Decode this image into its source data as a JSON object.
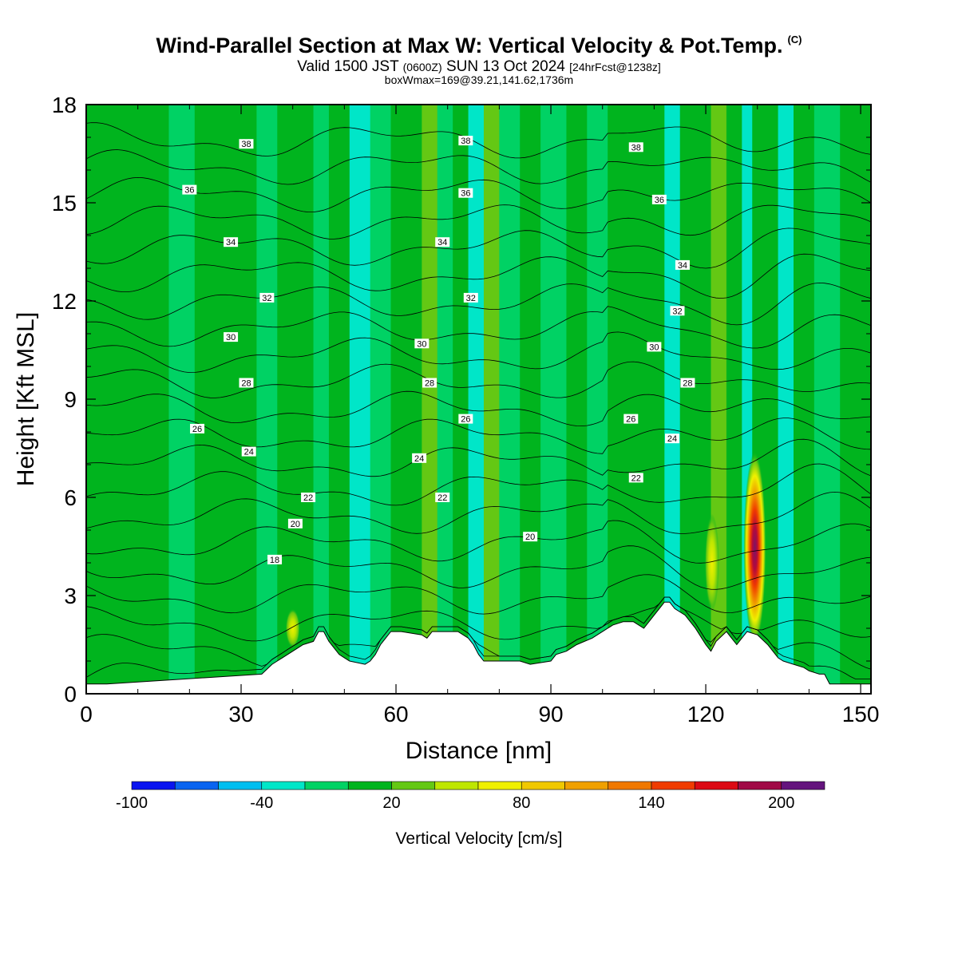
{
  "header": {
    "title": "Wind-Parallel Section at Max W: Vertical Velocity & Pot.Temp.",
    "copyright": "(C)",
    "valid_prefix": "Valid 1500 JST",
    "utc": "(0600Z)",
    "valid_suffix": "SUN 13 Oct 2024",
    "forecast": "[24hrFcst@1238z]",
    "box_info": "boxWmax=169@39.21,141.62,1736m"
  },
  "colorbar": {
    "label": "Vertical Velocity [cm/s]",
    "tick_labels": [
      "-100",
      "-40",
      "20",
      "80",
      "140",
      "200"
    ],
    "colors": [
      "#0a14f0",
      "#0a64f0",
      "#00bef0",
      "#00e6c8",
      "#00d264",
      "#00b41e",
      "#64c814",
      "#bee600",
      "#f0f000",
      "#f0c800",
      "#f0a000",
      "#f07800",
      "#f03c00",
      "#dc0a14",
      "#a00a46",
      "#64147d"
    ]
  },
  "chart_data": {
    "type": "heatmap",
    "title": "Wind-Parallel Section at Max W: Vertical Velocity & Pot.Temp.",
    "xlabel": "Distance [nm]",
    "ylabel": "Height [Kft MSL]",
    "xlim": [
      0,
      152
    ],
    "ylim": [
      0,
      18
    ],
    "xticks": [
      0,
      30,
      60,
      90,
      120,
      150
    ],
    "yticks": [
      0,
      3,
      6,
      9,
      12,
      15,
      18
    ],
    "grid": false,
    "fill_variable": "Vertical Velocity [cm/s]",
    "fill_bands": [
      {
        "x": [
          0,
          4
        ],
        "w": 10
      },
      {
        "x": [
          4,
          11
        ],
        "w": 20
      },
      {
        "x": [
          11,
          16
        ],
        "w": 12
      },
      {
        "x": [
          16,
          21
        ],
        "w": 8
      },
      {
        "x": [
          21,
          26
        ],
        "w": 14
      },
      {
        "x": [
          26,
          29
        ],
        "w": 22
      },
      {
        "x": [
          29,
          33
        ],
        "w": 18
      },
      {
        "x": [
          33,
          37
        ],
        "w": 6
      },
      {
        "x": [
          37,
          40
        ],
        "w": 24
      },
      {
        "x": [
          40,
          44
        ],
        "w": 10
      },
      {
        "x": [
          44,
          47
        ],
        "w": 0
      },
      {
        "x": [
          47,
          51
        ],
        "w": 16
      },
      {
        "x": [
          51,
          55
        ],
        "w": -20
      },
      {
        "x": [
          55,
          59
        ],
        "w": 8
      },
      {
        "x": [
          59,
          62
        ],
        "w": 22
      },
      {
        "x": [
          62,
          65
        ],
        "w": 14
      },
      {
        "x": [
          65,
          68
        ],
        "w": 36
      },
      {
        "x": [
          68,
          71
        ],
        "w": 6
      },
      {
        "x": [
          71,
          74
        ],
        "w": 20
      },
      {
        "x": [
          74,
          77
        ],
        "w": -12
      },
      {
        "x": [
          77,
          80
        ],
        "w": 30
      },
      {
        "x": [
          80,
          84
        ],
        "w": 4
      },
      {
        "x": [
          84,
          88
        ],
        "w": 22
      },
      {
        "x": [
          88,
          93
        ],
        "w": 0
      },
      {
        "x": [
          93,
          97
        ],
        "w": 18
      },
      {
        "x": [
          97,
          101
        ],
        "w": 6
      },
      {
        "x": [
          101,
          105
        ],
        "w": 26
      },
      {
        "x": [
          105,
          109
        ],
        "w": 10
      },
      {
        "x": [
          109,
          112
        ],
        "w": 16
      },
      {
        "x": [
          112,
          115
        ],
        "w": -18
      },
      {
        "x": [
          115,
          118
        ],
        "w": 12
      },
      {
        "x": [
          118,
          121
        ],
        "w": 24
      },
      {
        "x": [
          121,
          124
        ],
        "w": 40
      },
      {
        "x": [
          124,
          127
        ],
        "w": 14
      },
      {
        "x": [
          127,
          129
        ],
        "w": -30
      },
      {
        "x": [
          129,
          131
        ],
        "w": 28
      },
      {
        "x": [
          131,
          134
        ],
        "w": 12
      },
      {
        "x": [
          134,
          137
        ],
        "w": -16
      },
      {
        "x": [
          137,
          141
        ],
        "w": 20
      },
      {
        "x": [
          141,
          146
        ],
        "w": 8
      },
      {
        "x": [
          146,
          152
        ],
        "w": 18
      }
    ],
    "updraft_cores": [
      {
        "x": 129.5,
        "z_range": [
          1.5,
          7.4
        ],
        "w_max": 169
      },
      {
        "x": 121.2,
        "z_range": [
          2.5,
          5.5
        ],
        "w_max": 60
      },
      {
        "x": 40,
        "z_range": [
          1.4,
          2.6
        ],
        "w_max": 40
      }
    ],
    "theta_contours": {
      "variable": "Pot.Temp.",
      "levels": [
        18,
        19,
        20,
        21,
        22,
        23,
        24,
        25,
        26,
        27,
        28,
        29,
        30,
        31,
        32,
        33,
        34,
        35,
        36,
        37,
        38
      ],
      "labels": [
        {
          "text": "18",
          "x": 36.5,
          "z": 4.1
        },
        {
          "text": "20",
          "x": 40.5,
          "z": 5.2
        },
        {
          "text": "22",
          "x": 43,
          "z": 6.0
        },
        {
          "text": "24",
          "x": 31.5,
          "z": 7.4
        },
        {
          "text": "26",
          "x": 21.5,
          "z": 8.1
        },
        {
          "text": "28",
          "x": 31,
          "z": 9.5
        },
        {
          "text": "30",
          "x": 28,
          "z": 10.9
        },
        {
          "text": "32",
          "x": 35,
          "z": 12.1
        },
        {
          "text": "34",
          "x": 28,
          "z": 13.8
        },
        {
          "text": "36",
          "x": 20,
          "z": 15.4
        },
        {
          "text": "38",
          "x": 31,
          "z": 16.8
        },
        {
          "text": "24",
          "x": 64.5,
          "z": 7.2
        },
        {
          "text": "22",
          "x": 69,
          "z": 6.0
        },
        {
          "text": "26",
          "x": 73.5,
          "z": 8.4
        },
        {
          "text": "28",
          "x": 66.5,
          "z": 9.5
        },
        {
          "text": "30",
          "x": 65,
          "z": 10.7
        },
        {
          "text": "32",
          "x": 74.5,
          "z": 12.1
        },
        {
          "text": "34",
          "x": 69,
          "z": 13.8
        },
        {
          "text": "36",
          "x": 73.5,
          "z": 15.3
        },
        {
          "text": "38",
          "x": 73.5,
          "z": 16.9
        },
        {
          "text": "20",
          "x": 86,
          "z": 4.8
        },
        {
          "text": "22",
          "x": 106.5,
          "z": 6.6
        },
        {
          "text": "24",
          "x": 113.5,
          "z": 7.8
        },
        {
          "text": "26",
          "x": 105.5,
          "z": 8.4
        },
        {
          "text": "28",
          "x": 116.5,
          "z": 9.5
        },
        {
          "text": "30",
          "x": 110,
          "z": 10.6
        },
        {
          "text": "32",
          "x": 114.5,
          "z": 11.7
        },
        {
          "text": "34",
          "x": 115.5,
          "z": 13.1
        },
        {
          "text": "36",
          "x": 111,
          "z": 15.1
        },
        {
          "text": "38",
          "x": 106.5,
          "z": 16.7
        }
      ]
    },
    "terrain": {
      "x": [
        0,
        4,
        34,
        36,
        37,
        38,
        40,
        42,
        44,
        45,
        46,
        47,
        48,
        49,
        50,
        51,
        54,
        55,
        56,
        57,
        58,
        59,
        60,
        61,
        65,
        66,
        67,
        68,
        69,
        70,
        72,
        74,
        75,
        76,
        77,
        78,
        84,
        86,
        90,
        91,
        93,
        95,
        98,
        100,
        102,
        104,
        106,
        108,
        110,
        111,
        112,
        113,
        114,
        115,
        116,
        118,
        120,
        121,
        122,
        124,
        125,
        126,
        128,
        130,
        132,
        133,
        134,
        135,
        137,
        139,
        140,
        142,
        143,
        144,
        148,
        150,
        152
      ],
      "z": [
        0.3,
        0.3,
        0.6,
        0.9,
        1.0,
        1.1,
        1.3,
        1.5,
        1.6,
        1.9,
        1.9,
        1.6,
        1.4,
        1.2,
        1.1,
        1.0,
        0.9,
        1.0,
        1.2,
        1.5,
        1.7,
        1.9,
        1.9,
        1.9,
        1.8,
        1.7,
        1.9,
        1.9,
        1.9,
        1.9,
        1.9,
        1.7,
        1.5,
        1.2,
        1.0,
        1.0,
        1.0,
        0.9,
        1.0,
        1.2,
        1.3,
        1.5,
        1.7,
        1.9,
        2.1,
        2.2,
        2.2,
        2.0,
        2.4,
        2.6,
        2.8,
        2.8,
        2.6,
        2.5,
        2.4,
        2.0,
        1.5,
        1.3,
        1.6,
        1.9,
        1.7,
        1.5,
        1.9,
        1.8,
        1.5,
        1.3,
        1.1,
        1.0,
        0.9,
        0.8,
        0.7,
        0.6,
        0.6,
        0.3,
        0.3,
        0.3,
        0.3
      ]
    }
  }
}
